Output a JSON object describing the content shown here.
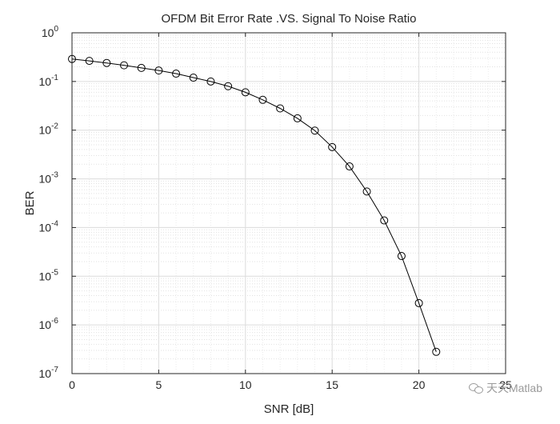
{
  "chart_data": {
    "type": "line",
    "title": "OFDM Bit Error Rate .VS. Signal To Noise Ratio",
    "xlabel": "SNR [dB]",
    "ylabel": "BER",
    "xlim": [
      0,
      25
    ],
    "ylim": [
      1e-07,
      1
    ],
    "yscale": "log",
    "grid": true,
    "minor_grid": true,
    "xticks": [
      0,
      5,
      10,
      15,
      20,
      25
    ],
    "yticks": [
      {
        "base": "10",
        "exp": "-7"
      },
      {
        "base": "10",
        "exp": "-6"
      },
      {
        "base": "10",
        "exp": "-5"
      },
      {
        "base": "10",
        "exp": "-4"
      },
      {
        "base": "10",
        "exp": "-3"
      },
      {
        "base": "10",
        "exp": "-2"
      },
      {
        "base": "10",
        "exp": "-1"
      },
      {
        "base": "10",
        "exp": "0"
      }
    ],
    "series": [
      {
        "color": "#000000",
        "marker": "circle",
        "x": [
          0,
          1,
          2,
          3,
          4,
          5,
          6,
          7,
          8,
          9,
          10,
          11,
          12,
          13,
          14,
          15,
          16,
          17,
          18,
          19,
          20,
          21
        ],
        "y": [
          0.29,
          0.265,
          0.24,
          0.215,
          0.19,
          0.168,
          0.145,
          0.12,
          0.1,
          0.08,
          0.06,
          0.042,
          0.028,
          0.0175,
          0.0098,
          0.0045,
          0.0018,
          0.00055,
          0.00014,
          2.6e-05,
          2.8e-06,
          2.8e-07
        ]
      }
    ]
  },
  "watermark": {
    "icon": "wechat-icon",
    "text": "天天Matlab"
  }
}
